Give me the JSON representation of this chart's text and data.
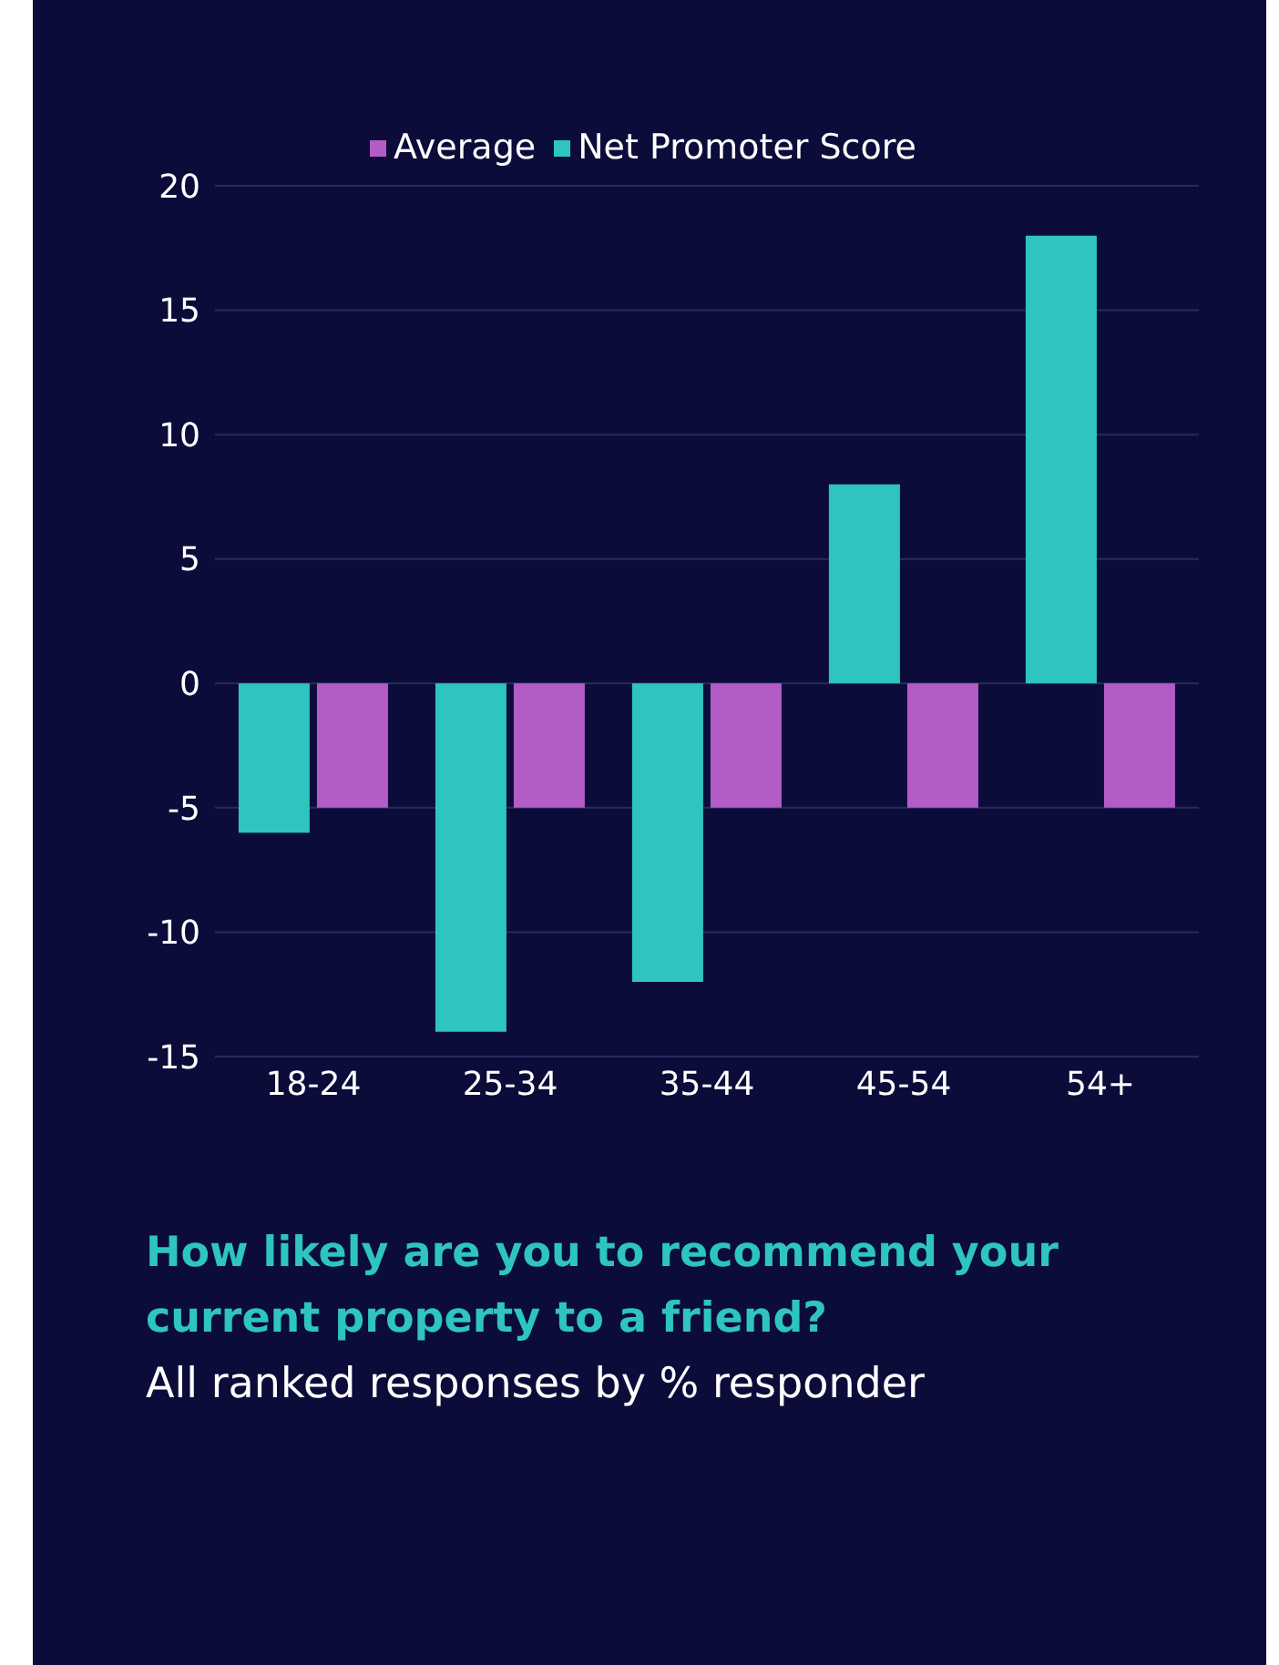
{
  "chart_data": {
    "type": "bar",
    "title": "How likely are you to recommend your current property to a friend?",
    "subtitle": "All ranked responses by % responder",
    "categories": [
      "18-24",
      "25-34",
      "35-44",
      "45-54",
      "54+"
    ],
    "series": [
      {
        "name": "Net Promoter Score",
        "color": "#2ec4c0",
        "values": [
          -6,
          -14,
          -12,
          8,
          18
        ]
      },
      {
        "name": "Average",
        "color": "#b35cc8",
        "values": [
          -5,
          -5,
          -5,
          -5,
          -5
        ]
      }
    ],
    "ylim": [
      -15,
      20
    ],
    "yticks": [
      -15,
      -10,
      -5,
      0,
      5,
      10,
      15,
      20
    ],
    "grid": "y",
    "legend": "top"
  }
}
